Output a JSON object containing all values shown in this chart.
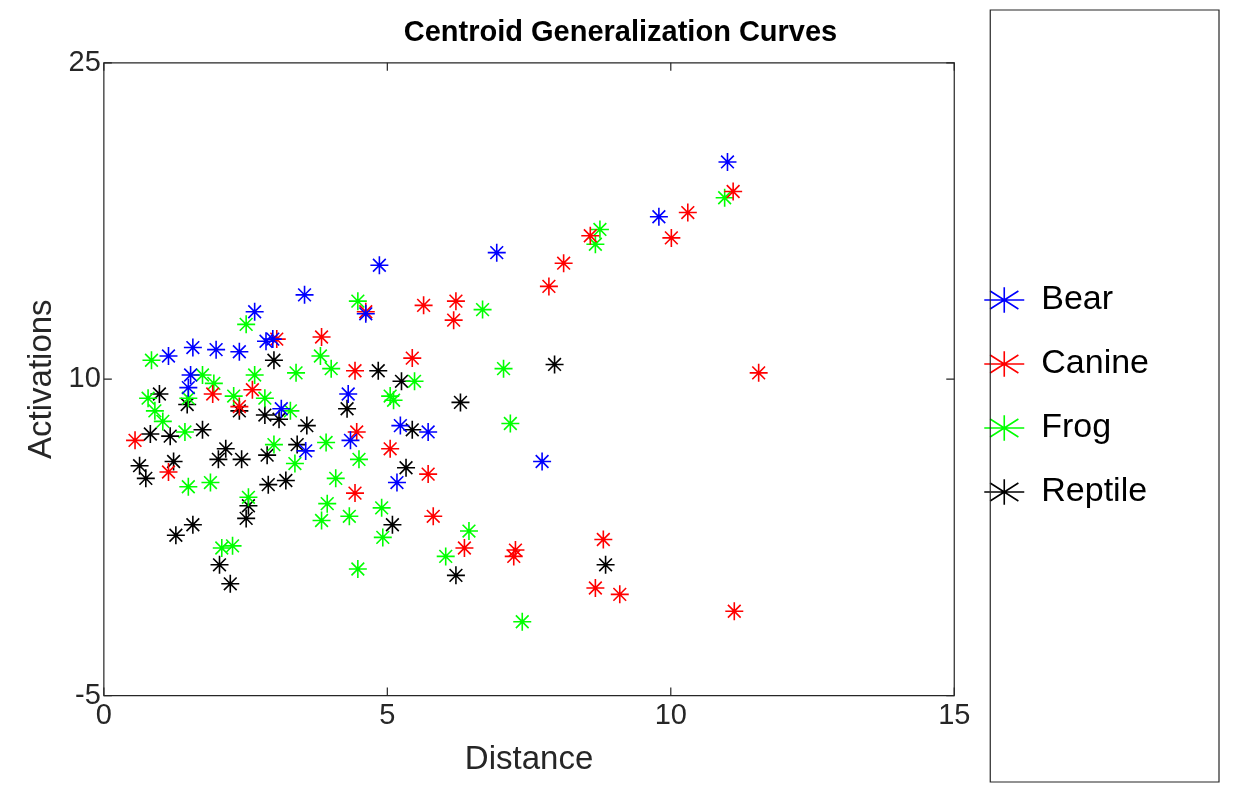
{
  "chart_data": {
    "type": "scatter",
    "title": "Centroid Generalization Curves",
    "xlabel": "Distance",
    "ylabel": "Activations",
    "xlim": [
      0,
      15
    ],
    "ylim": [
      -5,
      25
    ],
    "xticks": [
      0,
      5,
      10,
      15
    ],
    "yticks": [
      -5,
      10,
      25
    ],
    "grid": false,
    "legend": "right",
    "marker": "cross",
    "series": [
      {
        "name": "Bear",
        "color": "#0000ff",
        "x": [
          11.0,
          9.79,
          6.93,
          4.86,
          3.54,
          2.66,
          4.62,
          2.98,
          2.86,
          2.39,
          1.98,
          1.57,
          1.14,
          1.53,
          1.49,
          3.13,
          4.31,
          5.23,
          5.72,
          4.35,
          3.56,
          7.73,
          5.17
        ],
        "values": [
          20.3,
          17.7,
          16.0,
          15.4,
          14.0,
          13.2,
          13.1,
          11.9,
          11.8,
          11.3,
          11.4,
          11.5,
          11.1,
          10.2,
          9.6,
          8.6,
          9.3,
          7.8,
          7.5,
          7.1,
          6.6,
          6.1,
          5.1
        ]
      },
      {
        "name": "Canine",
        "color": "#ff0000",
        "x": [
          11.1,
          10.3,
          10.01,
          8.58,
          8.11,
          7.85,
          6.21,
          5.64,
          6.17,
          4.62,
          3.84,
          3.05,
          5.44,
          4.43,
          11.55,
          1.92,
          2.62,
          2.39,
          0.55,
          1.14,
          4.46,
          5.05,
          5.72,
          4.43,
          5.81,
          6.36,
          7.23,
          7.26,
          8.81,
          8.67,
          9.1,
          11.12
        ],
        "values": [
          18.9,
          17.9,
          16.7,
          16.8,
          15.5,
          14.4,
          13.7,
          13.5,
          12.8,
          13.2,
          12.0,
          11.9,
          11.0,
          10.4,
          10.3,
          9.3,
          9.5,
          8.7,
          7.1,
          5.6,
          7.5,
          6.7,
          5.5,
          4.6,
          3.5,
          2.0,
          1.6,
          1.9,
          2.4,
          0.1,
          -0.2,
          -1.0
        ]
      },
      {
        "name": "Frog",
        "color": "#00ff00",
        "x": [
          10.95,
          8.75,
          8.67,
          4.48,
          6.68,
          2.51,
          3.82,
          0.84,
          1.74,
          2.66,
          3.39,
          4.01,
          7.05,
          0.78,
          0.9,
          1.49,
          2.84,
          2.29,
          5.05,
          5.11,
          5.48,
          7.17,
          1.43,
          3.92,
          3.0,
          3.37,
          4.5,
          4.09,
          1.49,
          1.88,
          2.55,
          3.94,
          3.84,
          4.33,
          4.9,
          4.92,
          6.44,
          6.03,
          4.48,
          2.08,
          2.27,
          7.38,
          1.94,
          1.04,
          3.29
        ],
        "values": [
          18.6,
          17.1,
          16.4,
          13.7,
          13.3,
          12.6,
          11.1,
          10.9,
          10.2,
          10.2,
          10.3,
          10.5,
          10.5,
          9.1,
          8.5,
          9.1,
          9.1,
          9.2,
          9.2,
          9.0,
          9.9,
          7.9,
          7.5,
          7.0,
          6.9,
          6.0,
          6.2,
          5.3,
          4.9,
          5.1,
          4.4,
          4.1,
          3.3,
          3.5,
          3.9,
          2.5,
          2.8,
          1.6,
          1.0,
          2.0,
          2.1,
          -1.5,
          9.8,
          8.0,
          8.5
        ]
      },
      {
        "name": "Reptile",
        "color": "#000000",
        "x": [
          7.95,
          3.0,
          5.25,
          4.84,
          6.29,
          4.29,
          0.98,
          1.47,
          2.39,
          2.84,
          3.58,
          5.44,
          0.82,
          1.74,
          1.17,
          2.15,
          2.02,
          2.88,
          3.41,
          0.63,
          0.74,
          1.23,
          2.43,
          3.21,
          2.9,
          5.33,
          2.55,
          2.51,
          1.57,
          1.27,
          5.09,
          2.04,
          2.23,
          6.21,
          8.85,
          3.09
        ],
        "values": [
          10.7,
          10.9,
          9.9,
          10.4,
          8.9,
          8.6,
          9.3,
          8.8,
          8.5,
          8.3,
          7.8,
          7.6,
          7.4,
          7.6,
          7.3,
          6.7,
          6.2,
          6.4,
          6.9,
          5.9,
          5.3,
          6.1,
          6.2,
          5.2,
          5.0,
          5.8,
          4.0,
          3.4,
          3.1,
          2.6,
          3.1,
          1.2,
          0.3,
          0.7,
          1.2,
          8.1
        ]
      }
    ]
  }
}
